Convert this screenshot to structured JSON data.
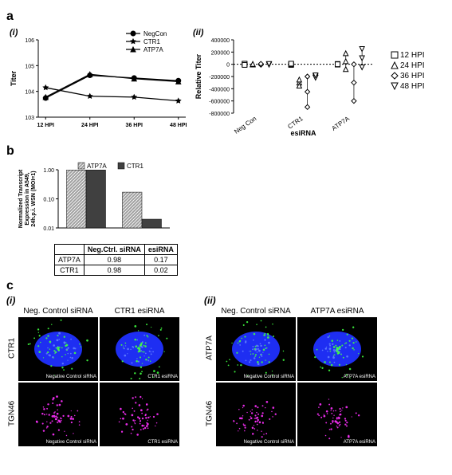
{
  "panel_a": {
    "letter": "a",
    "i": {
      "label": "(i)",
      "ylabel": "Titer",
      "xlabel_ticks": [
        "12 HPI",
        "24 HPI",
        "36 HPI",
        "48 HPI"
      ],
      "y_ticks": [
        "10^3",
        "10^4",
        "10^5",
        "10^6"
      ],
      "series": [
        {
          "name": "NegCon",
          "marker": "circle",
          "color": "#000000",
          "x": [
            12,
            24,
            36,
            48
          ],
          "y": [
            5500,
            42000,
            33000,
            26000
          ]
        },
        {
          "name": "CTR1",
          "marker": "star",
          "color": "#000000",
          "x": [
            12,
            24,
            36,
            48
          ],
          "y": [
            14000,
            6500,
            6000,
            4300
          ]
        },
        {
          "name": "ATP7A",
          "marker": "triangle",
          "color": "#000000",
          "x": [
            12,
            24,
            36,
            48
          ],
          "y": [
            6000,
            46000,
            31000,
            24000
          ]
        }
      ],
      "ylim": [
        1000,
        1000000
      ],
      "xlim": [
        10,
        50
      ]
    },
    "ii": {
      "label": "(ii)",
      "ylabel": "Relative Titer",
      "xlabel": "esiRNA",
      "x_categories": [
        "Neg Con",
        "CTR1",
        "ATP7A"
      ],
      "y_ticks": [
        -800000,
        -600000,
        -400000,
        -200000,
        0,
        200000,
        400000
      ],
      "legend": [
        {
          "name": "12 HPI",
          "marker": "square"
        },
        {
          "name": "24 HPI",
          "marker": "triangle"
        },
        {
          "name": "36 HPI",
          "marker": "diamond"
        },
        {
          "name": "48 HPI",
          "marker": "invtriangle"
        }
      ],
      "points": {
        "Neg Con": {
          "12": [
            0,
            10000,
            -10000
          ],
          "24": [
            0,
            -5000,
            5000
          ],
          "36": [
            0,
            -8000,
            8000
          ],
          "48": [
            0,
            -6000,
            6000
          ]
        },
        "CTR1": {
          "12": [
            -10000,
            0,
            10000
          ],
          "24": [
            -300000,
            -350000,
            -250000
          ],
          "36": [
            -450000,
            -700000,
            -200000
          ],
          "48": [
            -200000,
            -220000,
            -180000
          ]
        },
        "ATP7A": {
          "12": [
            -5000,
            5000,
            0
          ],
          "24": [
            50000,
            180000,
            -80000
          ],
          "36": [
            -300000,
            -600000,
            0
          ],
          "48": [
            100000,
            250000,
            -50000
          ]
        }
      },
      "ylim": [
        -800000,
        400000
      ],
      "marker_color": "#000000"
    }
  },
  "panel_b": {
    "letter": "b",
    "chart": {
      "ylabel": "Normalized Transcript Expression in A549, 24h.p.i. WSN (MOI=1)",
      "y_ticks": [
        "0.01",
        "0.10",
        "1.00"
      ],
      "categories": [
        "Neg.Ctrl. siRNA",
        "esiRNA"
      ],
      "series": [
        {
          "name": "ATP7A",
          "color": "#808080",
          "hatched": true,
          "values": [
            0.98,
            0.17
          ]
        },
        {
          "name": "CTR1",
          "color": "#404040",
          "hatched": false,
          "values": [
            0.98,
            0.02
          ]
        }
      ],
      "ylim": [
        0.01,
        1.0
      ]
    },
    "table": {
      "headers": [
        "",
        "Neg.Ctrl. siRNA",
        "esiRNA"
      ],
      "rows": [
        [
          "ATP7A",
          "0.98",
          "0.17"
        ],
        [
          "CTR1",
          "0.98",
          "0.02"
        ]
      ]
    }
  },
  "panel_c": {
    "letter": "c",
    "i": {
      "label": "(i)",
      "col_headers": [
        "Neg. Control siRNA",
        "CTR1 esiRNA"
      ],
      "row_headers": [
        "CTR1",
        "TGN46"
      ],
      "cells": [
        [
          {
            "overlay": "Negative Control siRNA",
            "nucleus": true,
            "green": true,
            "magenta": false
          },
          {
            "overlay": "CTR1 esiRNA",
            "nucleus": true,
            "green": true,
            "magenta": false
          }
        ],
        [
          {
            "overlay": "Negative Control siRNA",
            "nucleus": false,
            "green": false,
            "magenta": true
          },
          {
            "overlay": "CTR1 esiRNA",
            "nucleus": false,
            "green": false,
            "magenta": true
          }
        ]
      ],
      "nucleus_color": "#2030ff",
      "green_color": "#40ff40",
      "magenta_color": "#ff30ff"
    },
    "ii": {
      "label": "(ii)",
      "col_headers": [
        "Neg. Control siRNA",
        "ATP7A esiRNA"
      ],
      "row_headers": [
        "ATP7A",
        "TGN46"
      ],
      "cells": [
        [
          {
            "overlay": "Negative Control siRNA",
            "nucleus": true,
            "green": true,
            "magenta": false
          },
          {
            "overlay": "ATP7A esiRNA",
            "nucleus": true,
            "green": true,
            "magenta": false
          }
        ],
        [
          {
            "overlay": "Negative Control siRNA",
            "nucleus": false,
            "green": false,
            "magenta": true
          },
          {
            "overlay": "ATP7A esiRNA",
            "nucleus": false,
            "green": false,
            "magenta": true
          }
        ]
      ],
      "nucleus_color": "#2030ff",
      "green_color": "#40ff40",
      "magenta_color": "#ff30ff"
    }
  }
}
